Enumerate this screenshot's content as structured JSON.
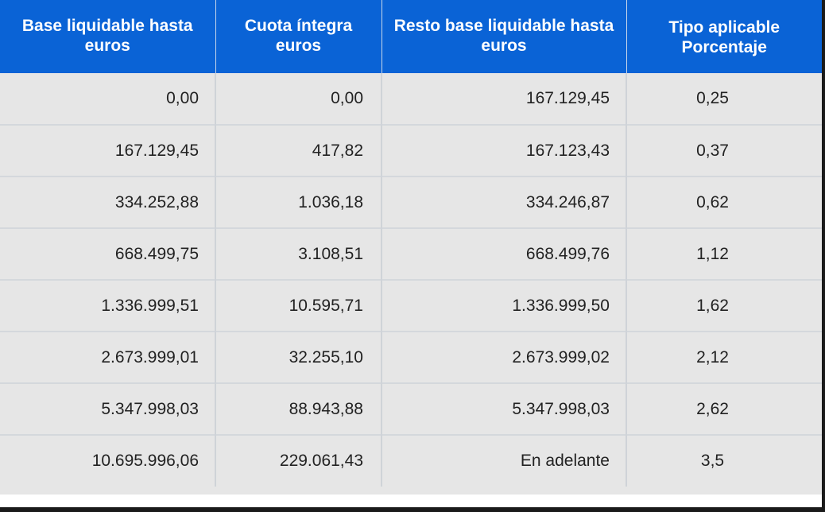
{
  "table": {
    "headers": [
      "Base liquidable hasta euros",
      "Cuota íntegra euros",
      "Resto base liquidable hasta euros",
      "Tipo aplicable Porcentaje"
    ],
    "rows": [
      [
        "0,00",
        "0,00",
        "167.129,45",
        "0,25"
      ],
      [
        "167.129,45",
        "417,82",
        "167.123,43",
        "0,37"
      ],
      [
        "334.252,88",
        "1.036,18",
        "334.246,87",
        "0,62"
      ],
      [
        "668.499,75",
        "3.108,51",
        "668.499,76",
        "1,12"
      ],
      [
        "1.336.999,51",
        "10.595,71",
        "1.336.999,50",
        "1,62"
      ],
      [
        "2.673.999,01",
        "32.255,10",
        "2.673.999,02",
        "2,12"
      ],
      [
        "5.347.998,03",
        "88.943,88",
        "5.347.998,03",
        "2,62"
      ],
      [
        "10.695.996,06",
        "229.061,43",
        "En adelante",
        "3,5"
      ]
    ]
  },
  "colors": {
    "header_bg": "#0a63d6",
    "header_text": "#ffffff",
    "cell_bg": "#e6e6e6",
    "cell_text": "#222222"
  }
}
